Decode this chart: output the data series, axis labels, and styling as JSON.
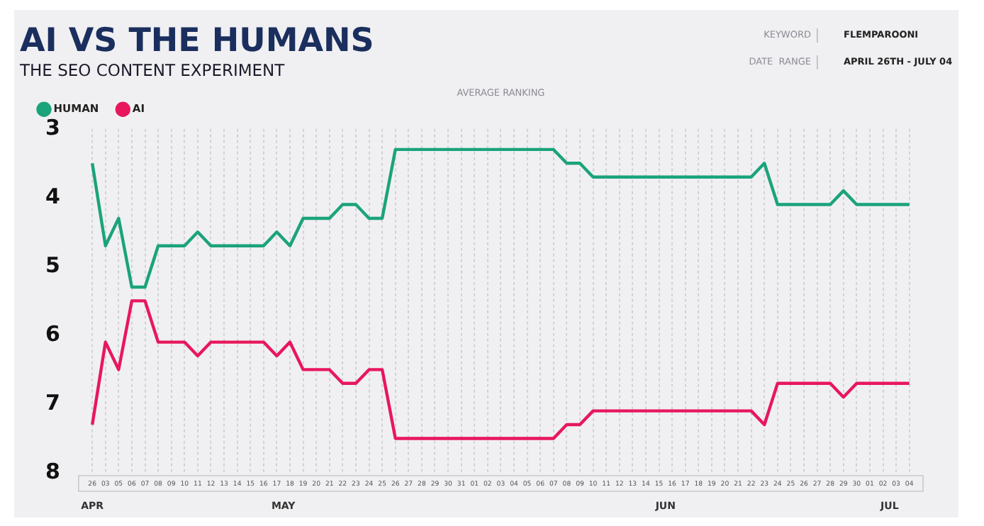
{
  "chart_data": {
    "type": "line",
    "title": "AI VS THE HUMANS",
    "subtitle": "THE SEO CONTENT EXPERIMENT",
    "ylabel": "AVERAGE RANKING",
    "annotations": [
      "KEYWORD",
      "FLEMPAROONI",
      "DATE  RANGE",
      "APRIL 26TH - JULY 04",
      "APR",
      "MAY",
      "JUN",
      "JUL"
    ],
    "categories": [
      "26",
      "03",
      "05",
      "06",
      "07",
      "08",
      "09",
      "10",
      "11",
      "12",
      "13",
      "14",
      "15",
      "16",
      "17",
      "18",
      "19",
      "20",
      "21",
      "22",
      "23",
      "24",
      "25",
      "26",
      "27",
      "28",
      "29",
      "30",
      "31",
      "01",
      "02",
      "03",
      "04",
      "05",
      "06",
      "07",
      "08",
      "09",
      "10",
      "11",
      "12",
      "13",
      "14",
      "15",
      "16",
      "17",
      "18",
      "19",
      "20",
      "21",
      "22",
      "23",
      "24",
      "25",
      "26",
      "27",
      "28",
      "29",
      "30",
      "01",
      "02",
      "03",
      "04"
    ],
    "series": [
      {
        "name": "HUMAN",
        "color": "#1ba37b",
        "values": [
          3.5,
          4.7,
          4.3,
          5.3,
          5.3,
          4.7,
          4.7,
          4.7,
          4.5,
          4.7,
          4.7,
          4.7,
          4.7,
          4.7,
          4.5,
          4.7,
          4.3,
          4.3,
          4.3,
          4.1,
          4.1,
          4.3,
          4.3,
          3.3,
          3.3,
          3.3,
          3.3,
          3.3,
          3.3,
          3.3,
          3.3,
          3.3,
          3.3,
          3.3,
          3.3,
          3.3,
          3.5,
          3.5,
          3.7,
          3.7,
          3.7,
          3.7,
          3.7,
          3.7,
          3.7,
          3.7,
          3.7,
          3.7,
          3.7,
          3.7,
          3.7,
          3.5,
          4.1,
          4.1,
          4.1,
          4.1,
          4.1,
          3.9,
          4.1,
          4.1,
          4.1,
          4.1,
          4.1
        ]
      },
      {
        "name": "AI",
        "color": "#e8175d",
        "values": [
          7.3,
          6.1,
          6.5,
          5.5,
          5.5,
          6.1,
          6.1,
          6.1,
          6.3,
          6.1,
          6.1,
          6.1,
          6.1,
          6.1,
          6.3,
          6.1,
          6.5,
          6.5,
          6.5,
          6.7,
          6.7,
          6.5,
          6.5,
          7.5,
          7.5,
          7.5,
          7.5,
          7.5,
          7.5,
          7.5,
          7.5,
          7.5,
          7.5,
          7.5,
          7.5,
          7.5,
          7.3,
          7.3,
          7.1,
          7.1,
          7.1,
          7.1,
          7.1,
          7.1,
          7.1,
          7.1,
          7.1,
          7.1,
          7.1,
          7.1,
          7.1,
          7.3,
          6.7,
          6.7,
          6.7,
          6.7,
          6.7,
          6.9,
          6.7,
          6.7,
          6.7,
          6.7,
          6.7
        ]
      }
    ],
    "ylim": [
      8,
      3
    ],
    "yticks": [
      3,
      4,
      5,
      6,
      7,
      8
    ],
    "grid": "x",
    "legend": "top left",
    "marker": "none",
    "line_style": "solid"
  }
}
